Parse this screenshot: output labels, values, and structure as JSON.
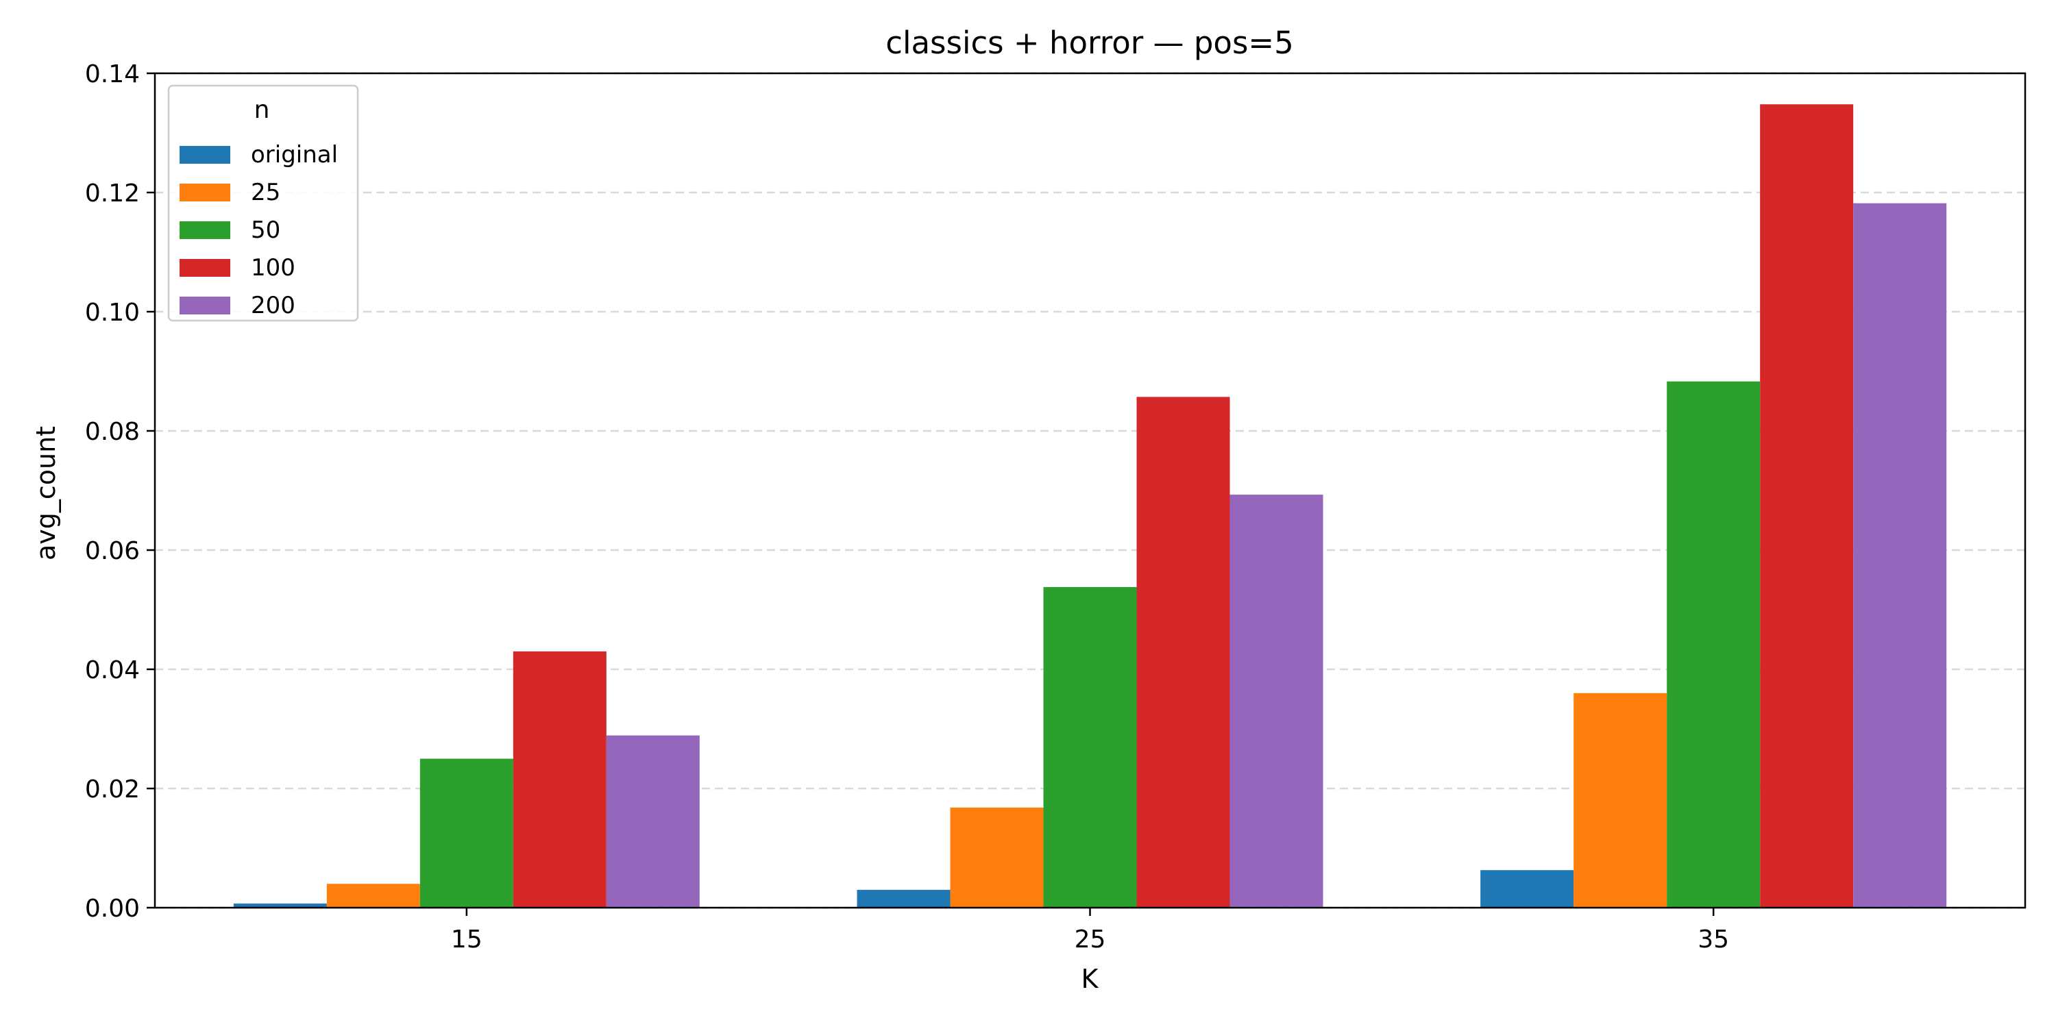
{
  "chart_data": {
    "type": "bar",
    "title": "classics + horror — pos=5",
    "xlabel": "K",
    "ylabel": "avg_count",
    "categories": [
      "15",
      "25",
      "35"
    ],
    "ylim": [
      0,
      0.14
    ],
    "yticks": [
      0.0,
      0.02,
      0.04,
      0.06,
      0.08,
      0.1,
      0.12,
      0.14
    ],
    "ytick_labels": [
      "0.00",
      "0.02",
      "0.04",
      "0.06",
      "0.08",
      "0.10",
      "0.12",
      "0.14"
    ],
    "grid": "horizontal dashed",
    "legend_title": "n",
    "legend_position": "top-left",
    "series": [
      {
        "name": "original",
        "color": "#1f77b4",
        "values": [
          0.0007,
          0.003,
          0.0063
        ]
      },
      {
        "name": "25",
        "color": "#ff7f0e",
        "values": [
          0.004,
          0.0168,
          0.036
        ]
      },
      {
        "name": "50",
        "color": "#2ca02c",
        "values": [
          0.025,
          0.0538,
          0.0883
        ]
      },
      {
        "name": "100",
        "color": "#d62728",
        "values": [
          0.043,
          0.0857,
          0.1348
        ]
      },
      {
        "name": "200",
        "color": "#9467bd",
        "values": [
          0.0289,
          0.0693,
          0.1182
        ]
      }
    ]
  }
}
